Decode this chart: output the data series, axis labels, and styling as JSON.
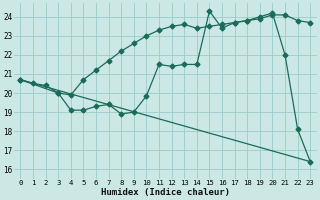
{
  "xlabel": "Humidex (Indice chaleur)",
  "bg_color": "#cce8e4",
  "line_color": "#1a6b5a",
  "grid_color": "#99cccc",
  "xlim": [
    -0.5,
    23.5
  ],
  "ylim": [
    15.5,
    24.7
  ],
  "yticks": [
    16,
    17,
    18,
    19,
    20,
    21,
    22,
    23,
    24
  ],
  "xticks": [
    0,
    1,
    2,
    3,
    4,
    5,
    6,
    7,
    8,
    9,
    10,
    11,
    12,
    13,
    14,
    15,
    16,
    17,
    18,
    19,
    20,
    21,
    22,
    23
  ],
  "series_zigzag_x": [
    0,
    1,
    2,
    3,
    4,
    5,
    6,
    7,
    8,
    9,
    10,
    11,
    12,
    13,
    14,
    15,
    16,
    17,
    18,
    19,
    20,
    21,
    22,
    23
  ],
  "series_zigzag_y": [
    20.7,
    20.5,
    20.4,
    20.0,
    19.1,
    19.1,
    19.3,
    19.4,
    18.9,
    19.0,
    19.85,
    21.5,
    21.4,
    21.5,
    21.5,
    24.3,
    23.4,
    23.7,
    23.8,
    24.0,
    24.2,
    22.0,
    18.1,
    16.4
  ],
  "series_upper_x": [
    0,
    3,
    4,
    5,
    6,
    7,
    8,
    9,
    10,
    11,
    12,
    13,
    14,
    15,
    16,
    17,
    18,
    19,
    20,
    21,
    22,
    23
  ],
  "series_upper_y": [
    20.7,
    20.0,
    19.9,
    20.7,
    21.2,
    21.7,
    22.2,
    22.6,
    23.0,
    23.3,
    23.5,
    23.6,
    23.4,
    23.5,
    23.6,
    23.7,
    23.8,
    23.9,
    24.1,
    24.1,
    23.8,
    23.7
  ],
  "trend_x": [
    0,
    23
  ],
  "trend_y": [
    20.7,
    16.4
  ]
}
